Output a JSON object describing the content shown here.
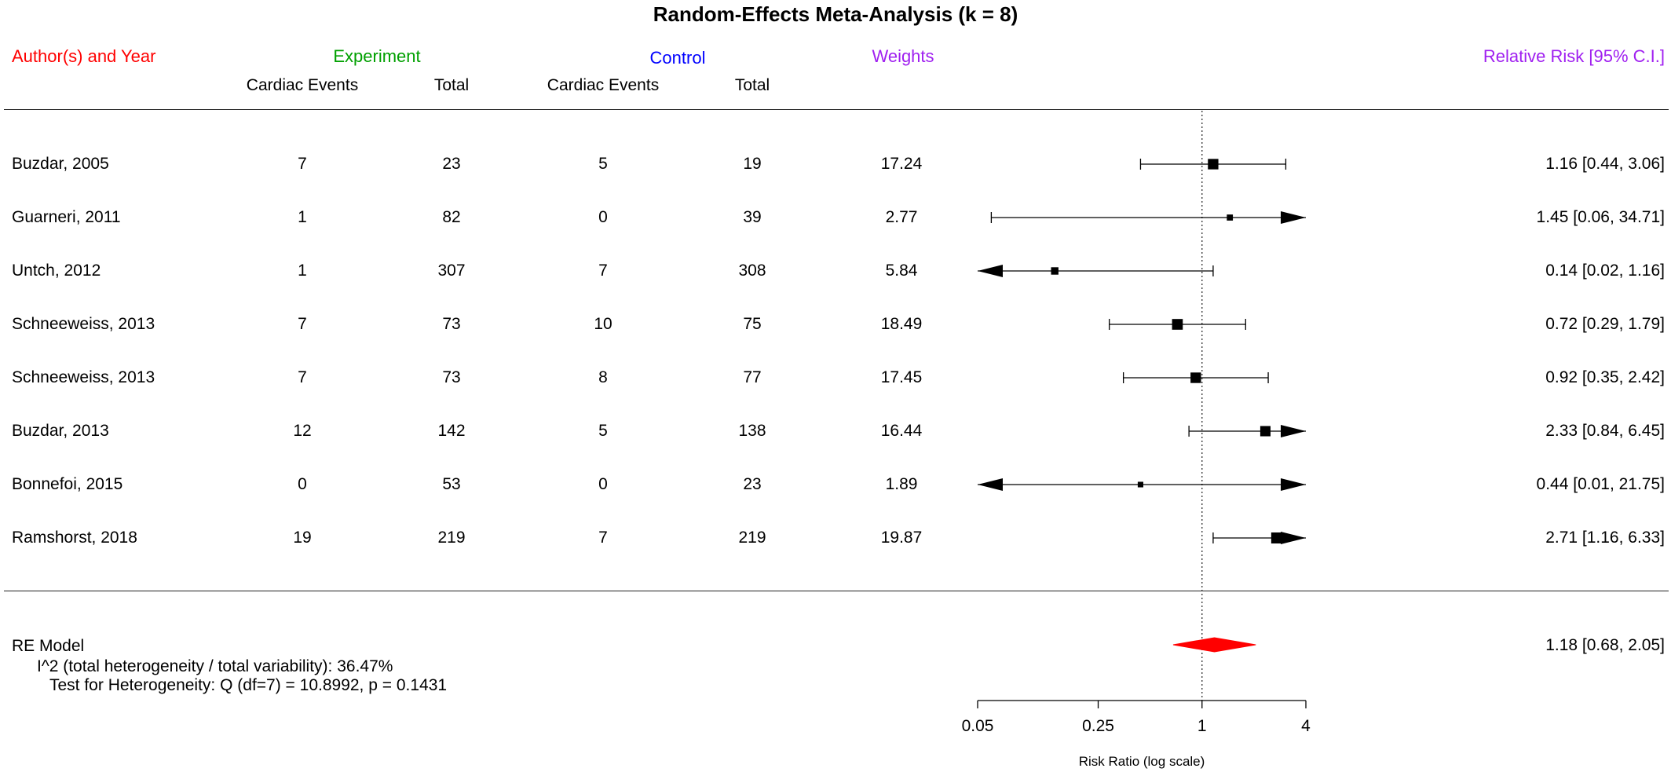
{
  "title": "Random-Effects Meta-Analysis (k = 8)",
  "headers": {
    "study": "Author(s) and Year",
    "experiment": "Experiment",
    "control": "Control",
    "weights": "Weights",
    "effect": "Relative Risk [95% C.I.]",
    "events": "Cardiac Events",
    "total": "Total"
  },
  "colors": {
    "study_header": "#ff0000",
    "experiment_header": "#00a000",
    "control_header": "#0000ff",
    "weights_header": "#a020f0",
    "effect_header": "#a020f0",
    "summary_diamond": "#ff0000"
  },
  "studies": [
    {
      "name": "Buzdar, 2005",
      "exp_events": "7",
      "exp_total": "23",
      "ctrl_events": "5",
      "ctrl_total": "19",
      "weight": "17.24",
      "ci_text": "1.16 [0.44,  3.06]",
      "est": 1.16,
      "lo": 0.44,
      "hi": 3.06
    },
    {
      "name": "Guarneri, 2011",
      "exp_events": "1",
      "exp_total": "82",
      "ctrl_events": "0",
      "ctrl_total": "39",
      "weight": "2.77",
      "ci_text": "1.45 [0.06, 34.71]",
      "est": 1.45,
      "lo": 0.06,
      "hi": 34.71
    },
    {
      "name": "Untch, 2012",
      "exp_events": "1",
      "exp_total": "307",
      "ctrl_events": "7",
      "ctrl_total": "308",
      "weight": "5.84",
      "ci_text": "0.14 [0.02,  1.16]",
      "est": 0.14,
      "lo": 0.02,
      "hi": 1.16
    },
    {
      "name": "Schneeweiss, 2013",
      "exp_events": "7",
      "exp_total": "73",
      "ctrl_events": "10",
      "ctrl_total": "75",
      "weight": "18.49",
      "ci_text": "0.72 [0.29,  1.79]",
      "est": 0.72,
      "lo": 0.29,
      "hi": 1.79
    },
    {
      "name": "Schneeweiss, 2013",
      "exp_events": "7",
      "exp_total": "73",
      "ctrl_events": "8",
      "ctrl_total": "77",
      "weight": "17.45",
      "ci_text": "0.92 [0.35,  2.42]",
      "est": 0.92,
      "lo": 0.35,
      "hi": 2.42
    },
    {
      "name": "Buzdar, 2013",
      "exp_events": "12",
      "exp_total": "142",
      "ctrl_events": "5",
      "ctrl_total": "138",
      "weight": "16.44",
      "ci_text": "2.33 [0.84,  6.45]",
      "est": 2.33,
      "lo": 0.84,
      "hi": 6.45
    },
    {
      "name": "Bonnefoi, 2015",
      "exp_events": "0",
      "exp_total": "53",
      "ctrl_events": "0",
      "ctrl_total": "23",
      "weight": "1.89",
      "ci_text": "0.44 [0.01, 21.75]",
      "est": 0.44,
      "lo": 0.01,
      "hi": 21.75
    },
    {
      "name": "Ramshorst, 2018",
      "exp_events": "19",
      "exp_total": "219",
      "ctrl_events": "7",
      "ctrl_total": "219",
      "weight": "19.87",
      "ci_text": "2.71 [1.16,  6.33]",
      "est": 2.71,
      "lo": 1.16,
      "hi": 6.33
    }
  ],
  "summary": {
    "label": "RE Model",
    "i2_text": "I^2 (total heterogeneity / total variability): 36.47%",
    "q_text": "Test for Heterogeneity: Q (df=7) = 10.8992, p = 0.1431",
    "ci_text": "1.18 [0.68,  2.05]",
    "est": 1.18,
    "lo": 0.68,
    "hi": 2.05
  },
  "axis": {
    "label": "Risk Ratio (log scale)",
    "ticks": [
      {
        "label": "0.05",
        "value": 0.05
      },
      {
        "label": "0.25",
        "value": 0.25
      },
      {
        "label": "1",
        "value": 1
      },
      {
        "label": "4",
        "value": 4
      }
    ],
    "scale": "log",
    "xlim": [
      0.05,
      4
    ],
    "reference_line": 1
  },
  "chart_data": {
    "type": "forest",
    "title": "Random-Effects Meta-Analysis (k = 8)",
    "xlabel": "Risk Ratio (log scale)",
    "x_scale": "log",
    "xlim": [
      0.05,
      4
    ],
    "x_ticks": [
      0.05,
      0.25,
      1,
      4
    ],
    "reference_line": 1,
    "categories": [
      "Buzdar, 2005",
      "Guarneri, 2011",
      "Untch, 2012",
      "Schneeweiss, 2013",
      "Schneeweiss, 2013",
      "Buzdar, 2013",
      "Bonnefoi, 2015",
      "Ramshorst, 2018"
    ],
    "estimates": [
      1.16,
      1.45,
      0.14,
      0.72,
      0.92,
      2.33,
      0.44,
      2.71
    ],
    "ci_lower": [
      0.44,
      0.06,
      0.02,
      0.29,
      0.35,
      0.84,
      0.01,
      1.16
    ],
    "ci_upper": [
      3.06,
      34.71,
      1.16,
      1.79,
      2.42,
      6.45,
      21.75,
      6.33
    ],
    "weights": [
      17.24,
      2.77,
      5.84,
      18.49,
      17.45,
      16.44,
      1.89,
      19.87
    ],
    "summary": {
      "label": "RE Model",
      "estimate": 1.18,
      "ci_lower": 0.68,
      "ci_upper": 2.05
    }
  }
}
